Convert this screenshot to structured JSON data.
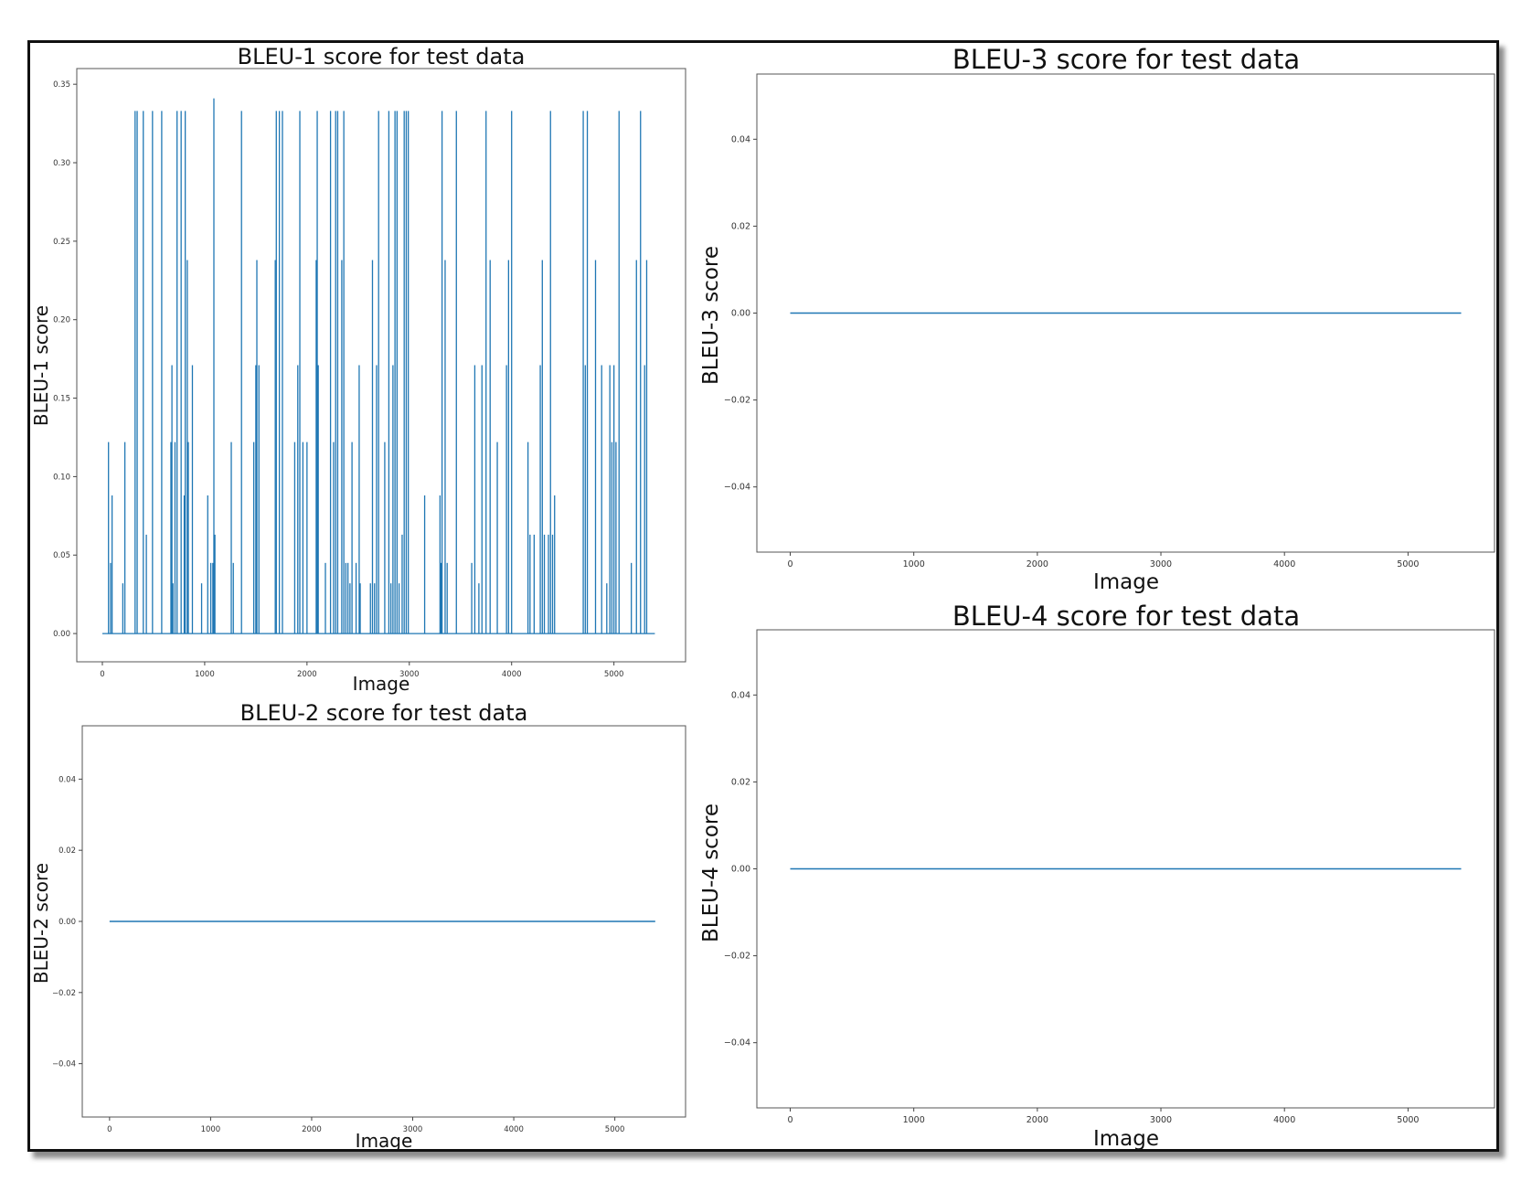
{
  "figure": {
    "panel_titles": [
      "BLEU-1 score for test data",
      "BLEU-2 score for test data",
      "BLEU-3 score for test data",
      "BLEU-4 score for test data"
    ]
  },
  "chart_data": [
    {
      "type": "line",
      "title": "BLEU-1 score for test data",
      "xlabel": "Image",
      "ylabel": "BLEU-1 score",
      "xlim": [
        -250,
        5700
      ],
      "ylim": [
        -0.018,
        0.36
      ],
      "xticks": [
        0,
        1000,
        2000,
        3000,
        4000,
        5000
      ],
      "yticks": [
        0.0,
        0.05,
        0.1,
        0.15,
        0.2,
        0.25,
        0.3,
        0.35
      ],
      "ytick_labels": [
        "0.00",
        "0.05",
        "0.10",
        "0.15",
        "0.20",
        "0.25",
        "0.30",
        "0.35"
      ],
      "x_max": 5400,
      "color": "#1f77b4",
      "spikes": [
        {
          "x": 60,
          "y": 0.122
        },
        {
          "x": 80,
          "y": 0.045
        },
        {
          "x": 95,
          "y": 0.088
        },
        {
          "x": 200,
          "y": 0.032
        },
        {
          "x": 220,
          "y": 0.122
        },
        {
          "x": 320,
          "y": 0.333
        },
        {
          "x": 340,
          "y": 0.333
        },
        {
          "x": 400,
          "y": 0.333
        },
        {
          "x": 430,
          "y": 0.063
        },
        {
          "x": 490,
          "y": 0.333
        },
        {
          "x": 580,
          "y": 0.333
        },
        {
          "x": 670,
          "y": 0.122
        },
        {
          "x": 680,
          "y": 0.171
        },
        {
          "x": 690,
          "y": 0.032
        },
        {
          "x": 710,
          "y": 0.122
        },
        {
          "x": 730,
          "y": 0.333
        },
        {
          "x": 770,
          "y": 0.333
        },
        {
          "x": 800,
          "y": 0.088
        },
        {
          "x": 810,
          "y": 0.333
        },
        {
          "x": 830,
          "y": 0.238
        },
        {
          "x": 840,
          "y": 0.122
        },
        {
          "x": 880,
          "y": 0.171
        },
        {
          "x": 970,
          "y": 0.032
        },
        {
          "x": 1030,
          "y": 0.088
        },
        {
          "x": 1060,
          "y": 0.045
        },
        {
          "x": 1080,
          "y": 0.045
        },
        {
          "x": 1090,
          "y": 0.341
        },
        {
          "x": 1100,
          "y": 0.063
        },
        {
          "x": 1260,
          "y": 0.122
        },
        {
          "x": 1280,
          "y": 0.045
        },
        {
          "x": 1360,
          "y": 0.333
        },
        {
          "x": 1480,
          "y": 0.122
        },
        {
          "x": 1500,
          "y": 0.171
        },
        {
          "x": 1510,
          "y": 0.238
        },
        {
          "x": 1530,
          "y": 0.171
        },
        {
          "x": 1690,
          "y": 0.238
        },
        {
          "x": 1700,
          "y": 0.333
        },
        {
          "x": 1730,
          "y": 0.333
        },
        {
          "x": 1760,
          "y": 0.333
        },
        {
          "x": 1880,
          "y": 0.122
        },
        {
          "x": 1910,
          "y": 0.171
        },
        {
          "x": 1930,
          "y": 0.333
        },
        {
          "x": 1960,
          "y": 0.122
        },
        {
          "x": 2000,
          "y": 0.122
        },
        {
          "x": 2090,
          "y": 0.238
        },
        {
          "x": 2100,
          "y": 0.333
        },
        {
          "x": 2110,
          "y": 0.171
        },
        {
          "x": 2180,
          "y": 0.045
        },
        {
          "x": 2230,
          "y": 0.333
        },
        {
          "x": 2260,
          "y": 0.122
        },
        {
          "x": 2280,
          "y": 0.333
        },
        {
          "x": 2300,
          "y": 0.333
        },
        {
          "x": 2340,
          "y": 0.238
        },
        {
          "x": 2360,
          "y": 0.333
        },
        {
          "x": 2380,
          "y": 0.045
        },
        {
          "x": 2400,
          "y": 0.045
        },
        {
          "x": 2420,
          "y": 0.032
        },
        {
          "x": 2440,
          "y": 0.122
        },
        {
          "x": 2480,
          "y": 0.045
        },
        {
          "x": 2510,
          "y": 0.171
        },
        {
          "x": 2520,
          "y": 0.032
        },
        {
          "x": 2620,
          "y": 0.032
        },
        {
          "x": 2640,
          "y": 0.238
        },
        {
          "x": 2660,
          "y": 0.032
        },
        {
          "x": 2680,
          "y": 0.171
        },
        {
          "x": 2700,
          "y": 0.333
        },
        {
          "x": 2760,
          "y": 0.122
        },
        {
          "x": 2800,
          "y": 0.333
        },
        {
          "x": 2820,
          "y": 0.032
        },
        {
          "x": 2840,
          "y": 0.171
        },
        {
          "x": 2860,
          "y": 0.333
        },
        {
          "x": 2880,
          "y": 0.333
        },
        {
          "x": 2900,
          "y": 0.032
        },
        {
          "x": 2930,
          "y": 0.063
        },
        {
          "x": 2950,
          "y": 0.333
        },
        {
          "x": 2970,
          "y": 0.333
        },
        {
          "x": 2990,
          "y": 0.333
        },
        {
          "x": 3150,
          "y": 0.088
        },
        {
          "x": 3300,
          "y": 0.088
        },
        {
          "x": 3310,
          "y": 0.045
        },
        {
          "x": 3320,
          "y": 0.333
        },
        {
          "x": 3350,
          "y": 0.238
        },
        {
          "x": 3370,
          "y": 0.045
        },
        {
          "x": 3460,
          "y": 0.333
        },
        {
          "x": 3610,
          "y": 0.045
        },
        {
          "x": 3640,
          "y": 0.171
        },
        {
          "x": 3680,
          "y": 0.032
        },
        {
          "x": 3710,
          "y": 0.171
        },
        {
          "x": 3750,
          "y": 0.333
        },
        {
          "x": 3790,
          "y": 0.238
        },
        {
          "x": 3860,
          "y": 0.122
        },
        {
          "x": 3950,
          "y": 0.171
        },
        {
          "x": 3970,
          "y": 0.238
        },
        {
          "x": 4000,
          "y": 0.333
        },
        {
          "x": 4160,
          "y": 0.122
        },
        {
          "x": 4180,
          "y": 0.063
        },
        {
          "x": 4220,
          "y": 0.063
        },
        {
          "x": 4280,
          "y": 0.171
        },
        {
          "x": 4300,
          "y": 0.238
        },
        {
          "x": 4320,
          "y": 0.063
        },
        {
          "x": 4360,
          "y": 0.063
        },
        {
          "x": 4380,
          "y": 0.333
        },
        {
          "x": 4400,
          "y": 0.063
        },
        {
          "x": 4420,
          "y": 0.088
        },
        {
          "x": 4700,
          "y": 0.333
        },
        {
          "x": 4720,
          "y": 0.171
        },
        {
          "x": 4740,
          "y": 0.333
        },
        {
          "x": 4820,
          "y": 0.238
        },
        {
          "x": 4880,
          "y": 0.171
        },
        {
          "x": 4930,
          "y": 0.032
        },
        {
          "x": 4960,
          "y": 0.171
        },
        {
          "x": 4980,
          "y": 0.122
        },
        {
          "x": 5000,
          "y": 0.171
        },
        {
          "x": 5020,
          "y": 0.122
        },
        {
          "x": 5050,
          "y": 0.333
        },
        {
          "x": 5170,
          "y": 0.045
        },
        {
          "x": 5220,
          "y": 0.238
        },
        {
          "x": 5260,
          "y": 0.333
        },
        {
          "x": 5300,
          "y": 0.171
        },
        {
          "x": 5320,
          "y": 0.238
        }
      ]
    },
    {
      "type": "line",
      "title": "BLEU-2 score for test data",
      "xlabel": "Image",
      "ylabel": "BLEU-2 score",
      "xlim": [
        -270,
        5700
      ],
      "ylim": [
        -0.055,
        0.055
      ],
      "xticks": [
        0,
        1000,
        2000,
        3000,
        4000,
        5000
      ],
      "yticks": [
        -0.04,
        -0.02,
        0.0,
        0.02,
        0.04
      ],
      "ytick_labels": [
        "−0.04",
        "−0.02",
        "0.00",
        "0.02",
        "0.04"
      ],
      "x_max": 5400,
      "y_constant": 0.0,
      "color": "#1f77b4"
    },
    {
      "type": "line",
      "title": "BLEU-3 score for test data",
      "xlabel": "Image",
      "ylabel": "BLEU-3 score",
      "xlim": [
        -270,
        5700
      ],
      "ylim": [
        -0.055,
        0.055
      ],
      "xticks": [
        0,
        1000,
        2000,
        3000,
        4000,
        5000
      ],
      "yticks": [
        -0.04,
        -0.02,
        0.0,
        0.02,
        0.04
      ],
      "ytick_labels": [
        "−0.04",
        "−0.02",
        "0.00",
        "0.02",
        "0.04"
      ],
      "x_max": 5430,
      "y_constant": 0.0,
      "color": "#1f77b4"
    },
    {
      "type": "line",
      "title": "BLEU-4 score for test data",
      "xlabel": "Image",
      "ylabel": "BLEU-4 score",
      "xlim": [
        -270,
        5700
      ],
      "ylim": [
        -0.055,
        0.055
      ],
      "xticks": [
        0,
        1000,
        2000,
        3000,
        4000,
        5000
      ],
      "yticks": [
        -0.04,
        -0.02,
        0.0,
        0.02,
        0.04
      ],
      "ytick_labels": [
        "−0.04",
        "−0.02",
        "0.00",
        "0.02",
        "0.04"
      ],
      "x_max": 5430,
      "y_constant": 0.0,
      "color": "#1f77b4"
    }
  ]
}
